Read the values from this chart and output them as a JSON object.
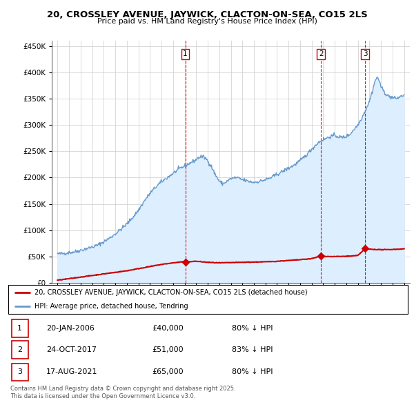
{
  "title": "20, CROSSLEY AVENUE, JAYWICK, CLACTON-ON-SEA, CO15 2LS",
  "subtitle": "Price paid vs. HM Land Registry's House Price Index (HPI)",
  "hpi_color": "#6699cc",
  "hpi_fill_color": "#ddeeff",
  "sale_color": "#cc0000",
  "vline_color": "#cc0000",
  "bg_color": "#ffffff",
  "grid_color": "#cccccc",
  "ylim": [
    0,
    460000
  ],
  "yticks": [
    0,
    50000,
    100000,
    150000,
    200000,
    250000,
    300000,
    350000,
    400000,
    450000
  ],
  "sales": [
    {
      "date_num": 2006.06,
      "price": 40000,
      "label": "1"
    },
    {
      "date_num": 2017.81,
      "price": 51000,
      "label": "2"
    },
    {
      "date_num": 2021.63,
      "price": 65000,
      "label": "3"
    }
  ],
  "sale_table": [
    {
      "num": "1",
      "date": "20-JAN-2006",
      "price": "£40,000",
      "pct": "80% ↓ HPI"
    },
    {
      "num": "2",
      "date": "24-OCT-2017",
      "price": "£51,000",
      "pct": "83% ↓ HPI"
    },
    {
      "num": "3",
      "date": "17-AUG-2021",
      "price": "£65,000",
      "pct": "80% ↓ HPI"
    }
  ],
  "legend_entries": [
    "20, CROSSLEY AVENUE, JAYWICK, CLACTON-ON-SEA, CO15 2LS (detached house)",
    "HPI: Average price, detached house, Tendring"
  ],
  "copyright_text": "Contains HM Land Registry data © Crown copyright and database right 2025.\nThis data is licensed under the Open Government Licence v3.0.",
  "xlim_start": 1994.5,
  "xlim_end": 2025.5,
  "hpi_curve_points": [
    [
      1995.0,
      55000
    ],
    [
      1995.5,
      56000
    ],
    [
      1996.0,
      57500
    ],
    [
      1996.5,
      59000
    ],
    [
      1997.0,
      62000
    ],
    [
      1997.5,
      65000
    ],
    [
      1998.0,
      68000
    ],
    [
      1998.5,
      72000
    ],
    [
      1999.0,
      78000
    ],
    [
      1999.5,
      85000
    ],
    [
      2000.0,
      93000
    ],
    [
      2000.5,
      102000
    ],
    [
      2001.0,
      112000
    ],
    [
      2001.5,
      124000
    ],
    [
      2002.0,
      138000
    ],
    [
      2002.5,
      155000
    ],
    [
      2003.0,
      170000
    ],
    [
      2003.5,
      182000
    ],
    [
      2004.0,
      192000
    ],
    [
      2004.5,
      200000
    ],
    [
      2005.0,
      208000
    ],
    [
      2005.5,
      216000
    ],
    [
      2006.0,
      222000
    ],
    [
      2006.5,
      228000
    ],
    [
      2007.0,
      234000
    ],
    [
      2007.2,
      238000
    ],
    [
      2007.5,
      240000
    ],
    [
      2007.8,
      237000
    ],
    [
      2008.0,
      232000
    ],
    [
      2008.3,
      222000
    ],
    [
      2008.6,
      208000
    ],
    [
      2009.0,
      193000
    ],
    [
      2009.3,
      188000
    ],
    [
      2009.6,
      192000
    ],
    [
      2010.0,
      198000
    ],
    [
      2010.5,
      200000
    ],
    [
      2011.0,
      196000
    ],
    [
      2011.5,
      193000
    ],
    [
      2012.0,
      191000
    ],
    [
      2012.5,
      193000
    ],
    [
      2013.0,
      196000
    ],
    [
      2013.5,
      200000
    ],
    [
      2014.0,
      206000
    ],
    [
      2014.5,
      212000
    ],
    [
      2015.0,
      218000
    ],
    [
      2015.5,
      224000
    ],
    [
      2016.0,
      232000
    ],
    [
      2016.5,
      242000
    ],
    [
      2017.0,
      254000
    ],
    [
      2017.5,
      265000
    ],
    [
      2017.8,
      270000
    ],
    [
      2018.0,
      272000
    ],
    [
      2018.3,
      275000
    ],
    [
      2018.6,
      278000
    ],
    [
      2019.0,
      280000
    ],
    [
      2019.3,
      278000
    ],
    [
      2019.6,
      276000
    ],
    [
      2020.0,
      278000
    ],
    [
      2020.3,
      282000
    ],
    [
      2020.6,
      290000
    ],
    [
      2021.0,
      300000
    ],
    [
      2021.3,
      312000
    ],
    [
      2021.6,
      325000
    ],
    [
      2022.0,
      345000
    ],
    [
      2022.3,
      368000
    ],
    [
      2022.5,
      385000
    ],
    [
      2022.7,
      390000
    ],
    [
      2022.9,
      382000
    ],
    [
      2023.0,
      372000
    ],
    [
      2023.3,
      362000
    ],
    [
      2023.6,
      355000
    ],
    [
      2024.0,
      352000
    ],
    [
      2024.3,
      350000
    ],
    [
      2024.6,
      353000
    ],
    [
      2025.0,
      357000
    ]
  ],
  "sale_curve_points": [
    [
      1995.0,
      5000
    ],
    [
      1996.0,
      8000
    ],
    [
      1997.0,
      11000
    ],
    [
      1998.0,
      14000
    ],
    [
      1999.0,
      17000
    ],
    [
      2000.0,
      20000
    ],
    [
      2001.0,
      23000
    ],
    [
      2002.0,
      27000
    ],
    [
      2003.0,
      31000
    ],
    [
      2004.0,
      35000
    ],
    [
      2005.0,
      38000
    ],
    [
      2006.0,
      40500
    ],
    [
      2006.06,
      40000
    ],
    [
      2007.0,
      41000
    ],
    [
      2007.5,
      40000
    ],
    [
      2008.0,
      39000
    ],
    [
      2008.5,
      38500
    ],
    [
      2009.0,
      38000
    ],
    [
      2009.5,
      38200
    ],
    [
      2010.0,
      38500
    ],
    [
      2011.0,
      39000
    ],
    [
      2012.0,
      39500
    ],
    [
      2013.0,
      40000
    ],
    [
      2014.0,
      41000
    ],
    [
      2015.0,
      42500
    ],
    [
      2016.0,
      44000
    ],
    [
      2017.0,
      46000
    ],
    [
      2017.81,
      51000
    ],
    [
      2018.0,
      50500
    ],
    [
      2018.5,
      50000
    ],
    [
      2019.0,
      50000
    ],
    [
      2019.5,
      50200
    ],
    [
      2020.0,
      50500
    ],
    [
      2020.5,
      51000
    ],
    [
      2021.0,
      52000
    ],
    [
      2021.63,
      65000
    ],
    [
      2022.0,
      64000
    ],
    [
      2022.5,
      63500
    ],
    [
      2023.0,
      63000
    ],
    [
      2023.5,
      63200
    ],
    [
      2024.0,
      63500
    ],
    [
      2024.5,
      64000
    ],
    [
      2025.0,
      64500
    ]
  ]
}
